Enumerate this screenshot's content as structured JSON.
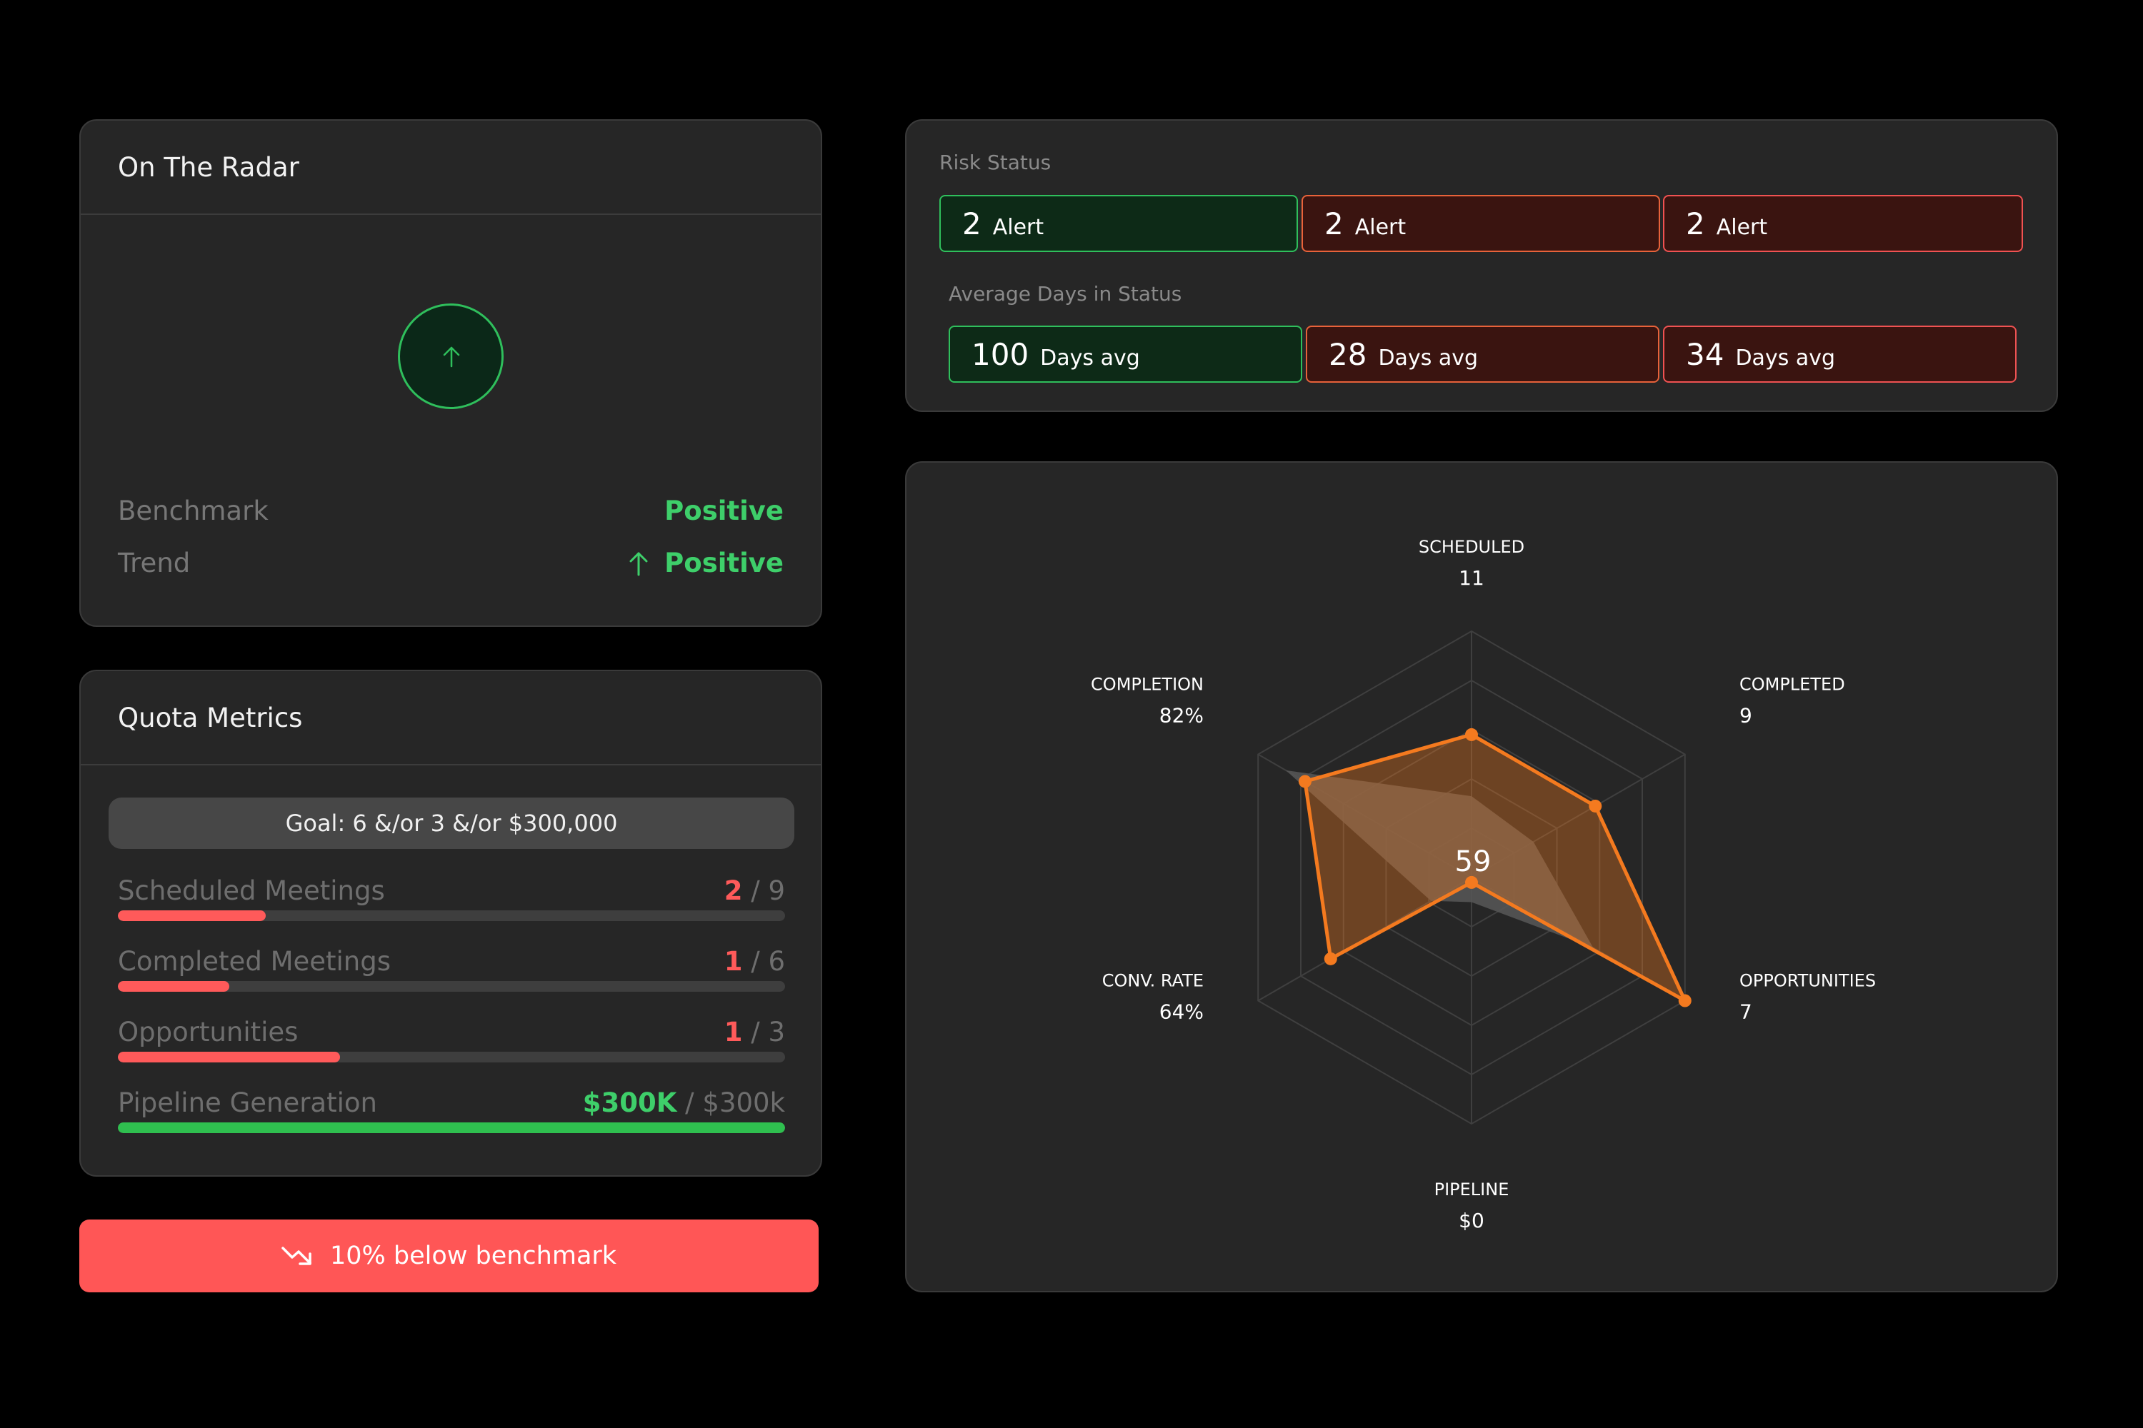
{
  "radar_card": {
    "title": "On The Radar",
    "benchmark_label": "Benchmark",
    "benchmark_value": "Positive",
    "trend_label": "Trend",
    "trend_value": "Positive",
    "icon": "arrow-up-icon"
  },
  "quota": {
    "title": "Quota Metrics",
    "goal": "Goal: 6 &/or 3 &/or $300,000",
    "metrics": [
      {
        "label": "Scheduled Meetings",
        "current": "2",
        "total": " / 9",
        "progress": 0.222,
        "color": "#ff5a5a"
      },
      {
        "label": "Completed Meetings",
        "current": "1",
        "total": " / 6",
        "progress": 0.167,
        "color": "#ff5a5a"
      },
      {
        "label": "Opportunities",
        "current": "1",
        "total": " / 3",
        "progress": 0.333,
        "color": "#ff5a5a"
      },
      {
        "label": "Pipeline Generation",
        "current": "$300K",
        "total": " / $300k",
        "progress": 1.0,
        "color": "#2fbf4f"
      }
    ]
  },
  "benchmark_button": {
    "label": "10% below benchmark",
    "icon": "trend-down-icon"
  },
  "risk": {
    "title": "Risk Status",
    "alerts": [
      {
        "value": "2",
        "unit": "Alert",
        "status": "green"
      },
      {
        "value": "2",
        "unit": "Alert",
        "status": "orange"
      },
      {
        "value": "2",
        "unit": "Alert",
        "status": "red"
      }
    ],
    "avg_title": "Average Days in Status",
    "days": [
      {
        "value": "100",
        "unit": "Days avg",
        "status": "green"
      },
      {
        "value": "28",
        "unit": "Days avg",
        "status": "orange"
      },
      {
        "value": "34",
        "unit": "Days avg",
        "status": "red"
      }
    ]
  },
  "chart_data": {
    "type": "radar",
    "center_value": "59",
    "axes": [
      {
        "name": "SCHEDULED",
        "value_label": "11"
      },
      {
        "name": "COMPLETED",
        "value_label": "9"
      },
      {
        "name": "OPPORTUNITIES",
        "value_label": "7"
      },
      {
        "name": "PIPELINE",
        "value_label": "$0"
      },
      {
        "name": "CONV. RATE",
        "value_label": "64%"
      },
      {
        "name": "COMPLETION",
        "value_label": "82%"
      }
    ],
    "rings": 5,
    "series": [
      {
        "values": [
          0.33,
          0.29,
          0.57,
          0.1,
          0.19,
          0.87
        ],
        "color": "#555555"
      },
      {
        "values": [
          0.58,
          0.58,
          1.0,
          0.02,
          0.66,
          0.78
        ],
        "color": "#f47a1f"
      }
    ]
  },
  "colors": {
    "green": "#2fbf5c",
    "red": "#ff5a5a",
    "orange": "#f47a1f"
  }
}
